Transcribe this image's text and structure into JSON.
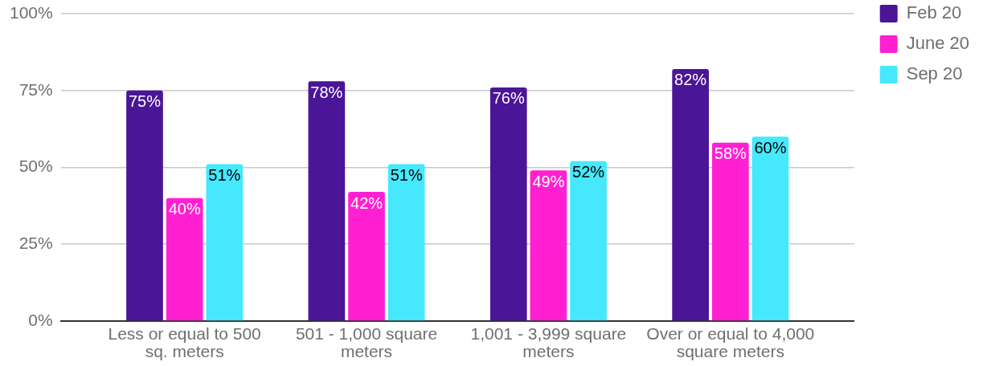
{
  "chart_data": {
    "type": "bar",
    "categories": [
      "Less or equal to 500 sq. meters",
      "501 - 1,000 square meters",
      "1,001 - 3,999 square meters",
      "Over or equal to 4,000 square meters"
    ],
    "series": [
      {
        "name": "Feb 20",
        "color": "#4b1597",
        "values": [
          75,
          78,
          76,
          82
        ],
        "value_labels": [
          "75%",
          "78%",
          "76%",
          "82%"
        ]
      },
      {
        "name": "June 20",
        "color": "#ff20d2",
        "values": [
          40,
          42,
          49,
          58
        ],
        "value_labels": [
          "40%",
          "42%",
          "49%",
          "58%"
        ]
      },
      {
        "name": "Sep 20",
        "color": "#46e8fd",
        "values": [
          51,
          51,
          52,
          60
        ],
        "value_labels": [
          "51%",
          "51%",
          "52%",
          "60%"
        ]
      }
    ],
    "ylim": [
      0,
      100
    ],
    "yticks": [
      {
        "value": 0,
        "label": "0%"
      },
      {
        "value": 25,
        "label": "25%"
      },
      {
        "value": 50,
        "label": "50%"
      },
      {
        "value": 75,
        "label": "75%"
      },
      {
        "value": 100,
        "label": "100%"
      }
    ],
    "grid": "y",
    "legend": "top right"
  }
}
